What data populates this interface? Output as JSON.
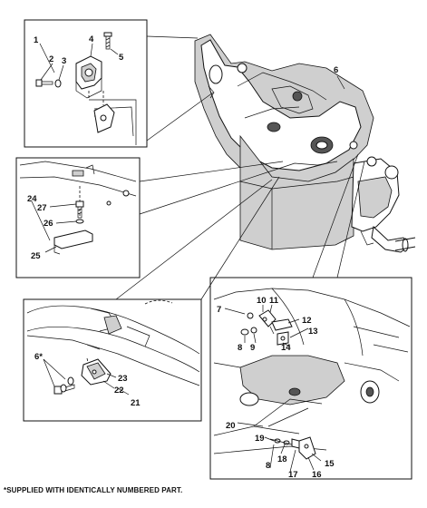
{
  "callouts": {
    "c1": "1",
    "c2": "2",
    "c3": "3",
    "c4": "4",
    "c5": "5",
    "c6": "6",
    "c6s": "6*",
    "c7": "7",
    "c8a": "8",
    "c8b": "8",
    "c9": "9",
    "c10": "10",
    "c11": "11",
    "c12": "12",
    "c13": "13",
    "c14": "14",
    "c15": "15",
    "c16": "16",
    "c17": "17",
    "c18": "18",
    "c19": "19",
    "c20": "20",
    "c21": "21",
    "c22": "22",
    "c23": "23",
    "c24": "24",
    "c25": "25",
    "c26": "26",
    "c27": "27"
  },
  "footnote": "*SUPPLIED WITH IDENTICALLY NUMBERED PART."
}
